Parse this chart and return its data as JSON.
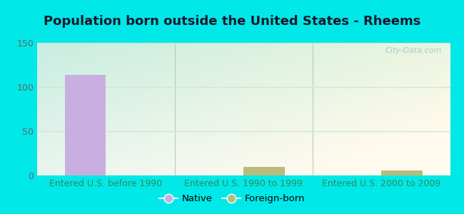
{
  "title": "Population born outside the United States - Rheems",
  "categories": [
    "Entered U.S. before 1990",
    "Entered U.S. 1990 to 1999",
    "Entered U.S. 2000 to 2009"
  ],
  "native_values": [
    114,
    0,
    0
  ],
  "foreign_values": [
    0,
    10,
    6
  ],
  "bar_width": 0.3,
  "native_color": "#c9aee0",
  "foreign_color": "#b8bb7a",
  "ylim": [
    0,
    150
  ],
  "yticks": [
    0,
    50,
    100,
    150
  ],
  "xlabel_color": "#2e8b57",
  "title_fontsize": 13,
  "tick_fontsize": 9,
  "legend_native_label": "Native",
  "legend_foreign_label": "Foreign-born",
  "outer_bg": "#00e8e8",
  "watermark": "City-Data.com",
  "grid_color": "#d0e8d0",
  "title_color": "#1a1a2e"
}
